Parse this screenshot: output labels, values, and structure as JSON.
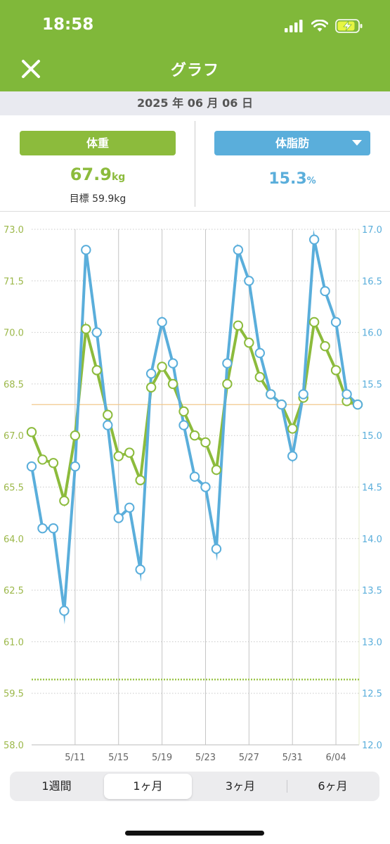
{
  "status_bar": {
    "time": "18:58"
  },
  "header": {
    "title": "グラフ"
  },
  "date_bar": {
    "date": "2025 年 06 月 06 日"
  },
  "weight_panel": {
    "label": "体重",
    "value": "67.9",
    "unit": "kg",
    "goal": "目標 59.9kg"
  },
  "fat_panel": {
    "label": "体脂肪",
    "value": "15.3",
    "unit": "%"
  },
  "colors": {
    "header": "#80b83a",
    "weight": "#8cbb3c",
    "fat": "#5aaedb"
  },
  "period_tabs": [
    {
      "label": "1週間",
      "active": false
    },
    {
      "label": "1ヶ月",
      "active": true
    },
    {
      "label": "3ヶ月",
      "active": false
    },
    {
      "label": "6ヶ月",
      "active": false
    }
  ],
  "chart_data": {
    "type": "line",
    "x_tick_labels": [
      "5/11",
      "5/15",
      "5/19",
      "5/23",
      "5/27",
      "5/31",
      "6/04"
    ],
    "left_axis": {
      "ticks": [
        "73.0",
        "71.5",
        "70.0",
        "68.5",
        "67.0",
        "65.5",
        "64.0",
        "62.5",
        "61.0",
        "59.5",
        "58.0"
      ],
      "ylim": [
        58.0,
        73.0
      ]
    },
    "right_axis": {
      "ticks": [
        "17.0",
        "16.5",
        "16.0",
        "15.5",
        "15.0",
        "14.5",
        "14.0",
        "13.5",
        "13.0",
        "12.5",
        "12.0"
      ],
      "ylim": [
        12.0,
        17.0
      ]
    },
    "x": [
      "5/07",
      "5/08",
      "5/09",
      "5/10",
      "5/11",
      "5/12",
      "5/13",
      "5/14",
      "5/15",
      "5/16",
      "5/17",
      "5/18",
      "5/19",
      "5/20",
      "5/21",
      "5/22",
      "5/23",
      "5/24",
      "5/25",
      "5/26",
      "5/27",
      "5/28",
      "5/29",
      "5/30",
      "5/31",
      "6/01",
      "6/02",
      "6/03",
      "6/04",
      "6/05",
      "6/06"
    ],
    "series": [
      {
        "axis": "left",
        "color": "#8cbb3c",
        "values": [
          67.1,
          66.3,
          66.2,
          65.1,
          67.0,
          70.1,
          68.9,
          67.6,
          66.4,
          66.5,
          65.7,
          68.4,
          69.0,
          68.5,
          67.7,
          67.0,
          66.8,
          66.0,
          68.5,
          70.2,
          69.7,
          68.7,
          68.2,
          67.9,
          67.2,
          68.1,
          70.3,
          69.6,
          68.9,
          68.0,
          67.9
        ]
      },
      {
        "axis": "right",
        "color": "#5aaedb",
        "values": [
          14.7,
          14.1,
          14.1,
          13.3,
          14.7,
          16.8,
          16.0,
          15.1,
          14.2,
          14.3,
          13.7,
          15.6,
          16.1,
          15.7,
          15.1,
          14.6,
          14.5,
          13.9,
          15.7,
          16.8,
          16.5,
          15.8,
          15.4,
          15.3,
          14.8,
          15.4,
          16.9,
          16.4,
          16.1,
          15.4,
          15.3
        ]
      }
    ],
    "reference_lines": [
      {
        "axis": "left",
        "value": 67.9,
        "style": "solid",
        "color": "#f2c88c"
      },
      {
        "axis": "left",
        "value": 59.9,
        "style": "dotted",
        "color": "#9cc54a"
      }
    ],
    "grid": true
  }
}
